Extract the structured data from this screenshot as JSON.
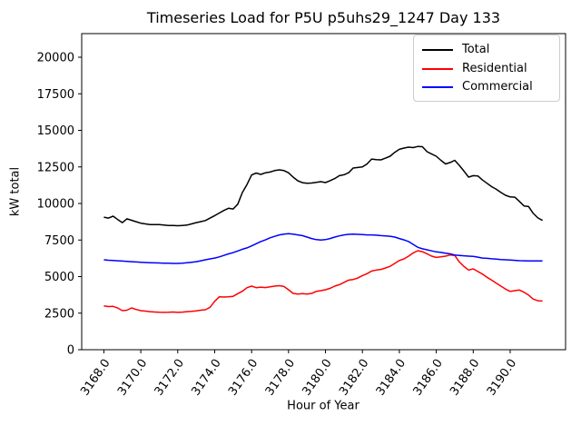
{
  "chart_data": {
    "type": "line",
    "title": "Timeseries Load for P5U p5uhs29_1247  Day 133",
    "xlabel": "Hour of Year",
    "ylabel": "kW total",
    "grid": false,
    "legend_position": "upper right",
    "line_width": 1.5,
    "x_start": 3168.0,
    "x_step": 0.25,
    "xlim": [
      3166.8,
      3193.0
    ],
    "ylim": [
      0,
      21615
    ],
    "xticks": [
      3168,
      3170,
      3172,
      3174,
      3176,
      3178,
      3180,
      3182,
      3184,
      3186,
      3188,
      3190
    ],
    "xtick_labels": [
      "3168.0",
      "3170.0",
      "3172.0",
      "3174.0",
      "3176.0",
      "3178.0",
      "3180.0",
      "3182.0",
      "3184.0",
      "3186.0",
      "3188.0",
      "3190.0"
    ],
    "yticks": [
      0,
      2500,
      5000,
      7500,
      10000,
      12500,
      15000,
      17500,
      20000
    ],
    "ytick_labels": [
      "0",
      "2500",
      "5000",
      "7500",
      "10000",
      "12500",
      "15000",
      "17500",
      "20000"
    ],
    "series": [
      {
        "name": "Total",
        "color": "#000000",
        "values": [
          9060,
          9000,
          9130,
          8900,
          8690,
          8950,
          8850,
          8750,
          8650,
          8600,
          8560,
          8550,
          8550,
          8520,
          8500,
          8490,
          8480,
          8500,
          8520,
          8600,
          8690,
          8760,
          8830,
          9000,
          9170,
          9350,
          9520,
          9670,
          9620,
          9950,
          10750,
          11300,
          11950,
          12080,
          11990,
          12100,
          12150,
          12250,
          12300,
          12250,
          12100,
          11800,
          11550,
          11420,
          11380,
          11400,
          11440,
          11490,
          11430,
          11560,
          11700,
          11900,
          11960,
          12100,
          12420,
          12460,
          12500,
          12700,
          13040,
          13000,
          12980,
          13100,
          13230,
          13500,
          13700,
          13790,
          13850,
          13820,
          13900,
          13880,
          13540,
          13380,
          13230,
          12950,
          12700,
          12800,
          12950,
          12600,
          12210,
          11800,
          11900,
          11880,
          11600,
          11380,
          11150,
          10970,
          10750,
          10560,
          10450,
          10430,
          10140,
          9830,
          9790,
          9320,
          9010,
          8840
        ]
      },
      {
        "name": "Residential",
        "color": "#ff0000",
        "values": [
          3000,
          2950,
          2960,
          2850,
          2670,
          2700,
          2860,
          2750,
          2670,
          2640,
          2600,
          2580,
          2560,
          2550,
          2560,
          2580,
          2550,
          2570,
          2600,
          2620,
          2650,
          2700,
          2730,
          2900,
          3310,
          3620,
          3600,
          3620,
          3650,
          3830,
          4000,
          4240,
          4350,
          4240,
          4280,
          4250,
          4300,
          4350,
          4380,
          4320,
          4100,
          3850,
          3810,
          3830,
          3810,
          3850,
          3990,
          4040,
          4100,
          4200,
          4350,
          4450,
          4600,
          4760,
          4800,
          4900,
          5070,
          5200,
          5380,
          5450,
          5490,
          5590,
          5700,
          5900,
          6100,
          6210,
          6400,
          6620,
          6770,
          6700,
          6560,
          6400,
          6310,
          6350,
          6400,
          6480,
          6450,
          6000,
          5690,
          5450,
          5530,
          5350,
          5170,
          4950,
          4760,
          4550,
          4350,
          4140,
          3990,
          4040,
          4080,
          3930,
          3730,
          3460,
          3350,
          3330
        ]
      },
      {
        "name": "Commercial",
        "color": "#0000ff",
        "values": [
          6150,
          6120,
          6100,
          6080,
          6060,
          6040,
          6020,
          6000,
          5980,
          5960,
          5950,
          5940,
          5930,
          5920,
          5910,
          5900,
          5900,
          5920,
          5950,
          5980,
          6020,
          6080,
          6150,
          6210,
          6270,
          6350,
          6450,
          6550,
          6640,
          6750,
          6870,
          6960,
          7100,
          7250,
          7400,
          7510,
          7650,
          7750,
          7850,
          7900,
          7930,
          7900,
          7850,
          7800,
          7700,
          7600,
          7530,
          7500,
          7530,
          7600,
          7700,
          7780,
          7850,
          7890,
          7900,
          7890,
          7870,
          7850,
          7850,
          7830,
          7800,
          7780,
          7760,
          7700,
          7600,
          7510,
          7400,
          7200,
          7000,
          6900,
          6830,
          6760,
          6690,
          6650,
          6600,
          6550,
          6480,
          6450,
          6420,
          6400,
          6380,
          6330,
          6270,
          6250,
          6220,
          6200,
          6170,
          6150,
          6130,
          6110,
          6090,
          6080,
          6070,
          6070,
          6070,
          6070
        ]
      }
    ]
  }
}
